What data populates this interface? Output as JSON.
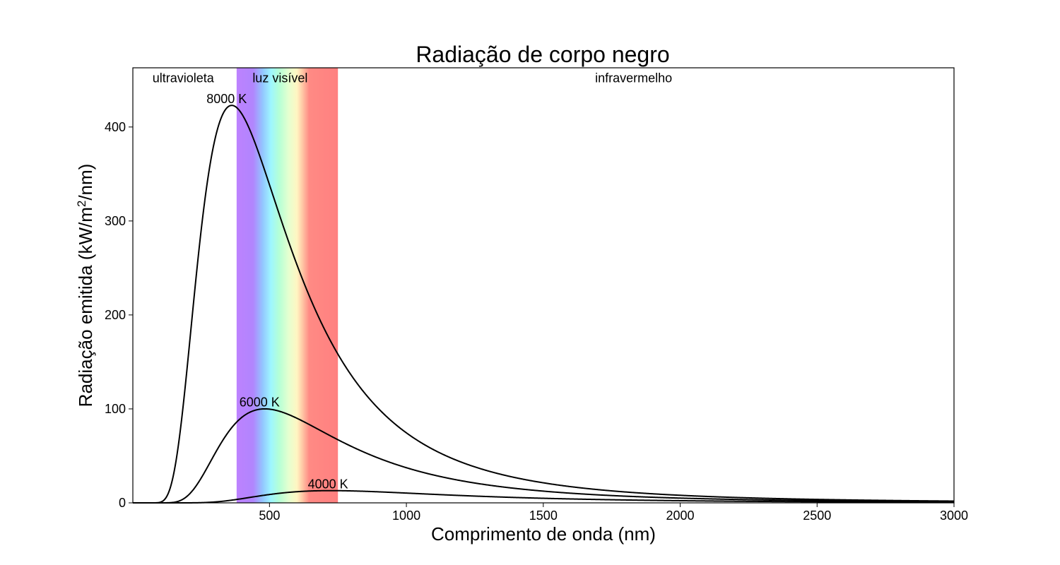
{
  "chart_data": {
    "type": "line",
    "title": "Radiação de corpo negro",
    "xlabel": "Comprimento de onda (nm)",
    "ylabel": "Radiação emitida (kW/m²/nm)",
    "ylabel_parts": {
      "before": "Radiação emitida (kW/m",
      "sup": "2",
      "after": "/nm)"
    },
    "xlim": [
      1,
      3000
    ],
    "ylim": [
      0,
      463
    ],
    "x_ticks": [
      500,
      1000,
      1500,
      2000,
      2500,
      3000
    ],
    "x_tick_labels": [
      "500",
      "1000",
      "1500",
      "2000",
      "2500",
      "3000"
    ],
    "y_ticks": [
      0,
      100,
      200,
      300,
      400
    ],
    "y_tick_labels": [
      "0",
      "100",
      "200",
      "300",
      "400"
    ],
    "grid": false,
    "regions": [
      {
        "label": "ultravioleta",
        "label_x": 185,
        "label_y": 452,
        "anchor": "middle"
      },
      {
        "label": "luz visível",
        "from": 380,
        "to": 750,
        "label_x": 438,
        "label_y": 452,
        "anchor": "start"
      },
      {
        "label": "infravermelho",
        "label_x": 1830,
        "label_y": 452,
        "anchor": "middle"
      }
    ],
    "visible_band": {
      "from": 380,
      "to": 750,
      "stops": [
        {
          "nm": 380,
          "color": "#bd82ff"
        },
        {
          "nm": 440,
          "color": "#b185fd"
        },
        {
          "nm": 475,
          "color": "#93c6ff"
        },
        {
          "nm": 505,
          "color": "#9ef6ff"
        },
        {
          "nm": 535,
          "color": "#b4ffd6"
        },
        {
          "nm": 570,
          "color": "#e5ffd0"
        },
        {
          "nm": 600,
          "color": "#fff6c2"
        },
        {
          "nm": 620,
          "color": "#ffc8a6"
        },
        {
          "nm": 645,
          "color": "#ff8a84"
        },
        {
          "nm": 750,
          "color": "#ff8080"
        }
      ]
    },
    "series": [
      {
        "temperature_K": 8000,
        "peak_x": 362,
        "peak_y": 423,
        "label": "8000 K",
        "label_x": 270,
        "label_y": 430
      },
      {
        "temperature_K": 6000,
        "peak_x": 483,
        "peak_y": 100,
        "label": "6000 K",
        "label_x": 390,
        "label_y": 107
      },
      {
        "temperature_K": 4000,
        "peak_x": 724,
        "peak_y": 13,
        "label": "4000 K",
        "label_x": 640,
        "label_y": 20
      }
    ]
  }
}
